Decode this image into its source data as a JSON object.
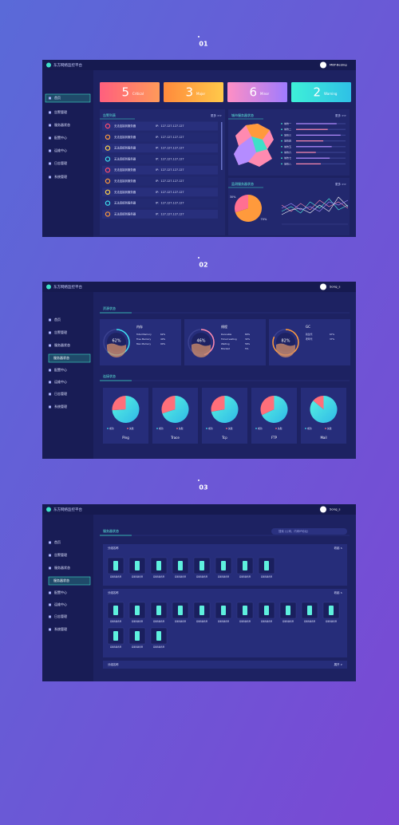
{
  "section_labels": [
    "01",
    "02",
    "03"
  ],
  "app_title": "东方网络监控平台",
  "menu": [
    "首页",
    "告警管理",
    "服务器状态",
    "配置中心",
    "运维中心",
    "日志管理",
    "系统管理"
  ],
  "submenu": "服务器状态",
  "dashboard1": {
    "user": "MBY-Beijing",
    "alarms": [
      {
        "count": 5,
        "label": "Critical"
      },
      {
        "count": 3,
        "label": "Major"
      },
      {
        "count": 6,
        "label": "Minor"
      },
      {
        "count": 2,
        "label": "Warning"
      }
    ],
    "panel_titles": [
      "告警列表",
      "城市服务器状态",
      "监测服务器状态"
    ],
    "more": "更多 >>",
    "alarm_rows": [
      {
        "text": "无法连接到服务器",
        "ip": "IP：127.127.127.127"
      },
      {
        "text": "无法连接到服务器",
        "ip": "IP：127.127.127.127"
      },
      {
        "text": "无法连接到服务器",
        "ip": "IP：127.127.127.127"
      },
      {
        "text": "无法连接到服务器",
        "ip": "IP：127.127.127.127"
      },
      {
        "text": "无法连接到服务器",
        "ip": "IP：127.127.127.127"
      },
      {
        "text": "无法连接到服务器",
        "ip": "IP：127.127.127.127"
      },
      {
        "text": "无法连接到服务器",
        "ip": "IP：127.127.127.127"
      },
      {
        "text": "无法连接到服务器",
        "ip": "IP：127.127.127.127"
      },
      {
        "text": "无法连接到服务器",
        "ip": "IP：127.127.127.127"
      }
    ],
    "city_bars": {
      "xlim": [
        0,
        100
      ],
      "rows": [
        {
          "name": "城市一",
          "value": 82
        },
        {
          "name": "城市二",
          "value": 64
        },
        {
          "name": "城市三",
          "value": 90
        },
        {
          "name": "城市四",
          "value": 55
        },
        {
          "name": "城市五",
          "value": 72
        },
        {
          "name": "城市六",
          "value": 40
        },
        {
          "name": "城市七",
          "value": 68
        },
        {
          "name": "城市八",
          "value": 50
        }
      ]
    },
    "pie": {
      "values": [
        70,
        30
      ],
      "labels": [
        "70%",
        "30%"
      ],
      "colors": [
        "#ff9a3c",
        "#ff6f91"
      ]
    },
    "lines": {
      "ylim": [
        0,
        100
      ],
      "series": [
        {
          "color": "#4ff0e0",
          "values": [
            40,
            55,
            35,
            70,
            50,
            80,
            45,
            60
          ]
        },
        {
          "color": "#ff8ab0",
          "values": [
            60,
            40,
            65,
            45,
            75,
            55,
            70,
            50
          ]
        },
        {
          "color": "#ffffff",
          "values": [
            30,
            45,
            50,
            35,
            60,
            40,
            85,
            55
          ]
        },
        {
          "color": "#9f8cff",
          "values": [
            50,
            65,
            45,
            55,
            40,
            70,
            60,
            75
          ]
        }
      ]
    }
  },
  "dashboard2": {
    "user": "Song_s",
    "section_titles": [
      "资源状态",
      "连接状态"
    ],
    "gauges": [
      {
        "name": "内存",
        "value": 62,
        "label": "62%",
        "stats": [
          [
            "Total Memory",
            "62%"
          ],
          [
            "Free Memory",
            "40%"
          ],
          [
            "Max Memory",
            "90%"
          ]
        ]
      },
      {
        "name": "线程",
        "value": 46,
        "label": "46%",
        "stats": [
          [
            "Runnable",
            "80%"
          ],
          [
            "Timed waiting",
            "32%"
          ],
          [
            "Waiting",
            "56%"
          ],
          [
            "Blocked",
            "5%"
          ]
        ]
      },
      {
        "name": "GC",
        "value": 82,
        "label": "82%",
        "stats": [
          [
            "新生代",
            "67%"
          ],
          [
            "老年代",
            "37%"
          ]
        ]
      }
    ],
    "pie_legend": [
      "成功",
      "失败"
    ],
    "pies": [
      {
        "name": "Ping",
        "values": [
          74,
          26
        ]
      },
      {
        "name": "Trace",
        "values": [
          70,
          30
        ]
      },
      {
        "name": "Tcp",
        "values": [
          72,
          28
        ]
      },
      {
        "name": "FTP",
        "values": [
          68,
          32
        ]
      },
      {
        "name": "Mail",
        "values": [
          86,
          14
        ]
      }
    ]
  },
  "dashboard3": {
    "user": "Song_s",
    "title": "服务器状态",
    "search": "搜索 (公网、内网IP地址)",
    "collapse": "收起 ∧",
    "expand": "展开 ∨",
    "groups": [
      {
        "title": "分组名称",
        "servers": [
          "云服务器名称",
          "云服务器名称",
          "云服务器名称",
          "云服务器名称",
          "云服务器名称",
          "云服务器名称",
          "云服务器名称",
          "云服务器名称"
        ]
      },
      {
        "title": "分组名称",
        "servers": [
          "云服务器名称",
          "云服务器名称",
          "云服务器名称",
          "云服务器名称",
          "云服务器名称",
          "云服务器名称",
          "云服务器名称",
          "云服务器名称",
          "云服务器名称",
          "云服务器名称",
          "云服务器名称",
          "云服务器名称",
          "云服务器名称",
          "云服务器名称"
        ]
      },
      {
        "title": "分组名称",
        "servers": []
      }
    ]
  }
}
